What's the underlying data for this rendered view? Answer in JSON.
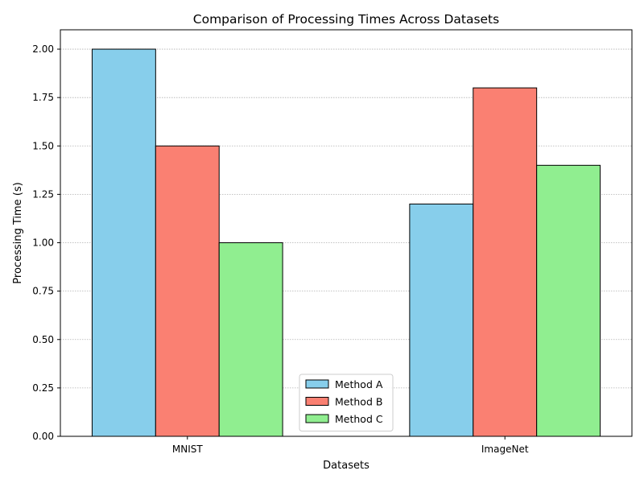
{
  "chart_data": {
    "type": "bar",
    "title": "Comparison of Processing Times Across Datasets",
    "xlabel": "Datasets",
    "ylabel": "Processing Time (s)",
    "categories": [
      "MNIST",
      "ImageNet"
    ],
    "series": [
      {
        "name": "Method A",
        "values": [
          2.0,
          1.2
        ],
        "color": "#87CEEB"
      },
      {
        "name": "Method B",
        "values": [
          1.5,
          1.8
        ],
        "color": "#FA8072"
      },
      {
        "name": "Method C",
        "values": [
          1.0,
          1.4
        ],
        "color": "#90EE90"
      }
    ],
    "ylim": [
      0,
      2.1
    ],
    "yticks": [
      "0.00",
      "0.25",
      "0.50",
      "0.75",
      "1.00",
      "1.25",
      "1.50",
      "1.75",
      "2.00"
    ],
    "grid": "y-dotted",
    "legend_position": "bottom-center",
    "bar_edge_color": "#000000"
  }
}
